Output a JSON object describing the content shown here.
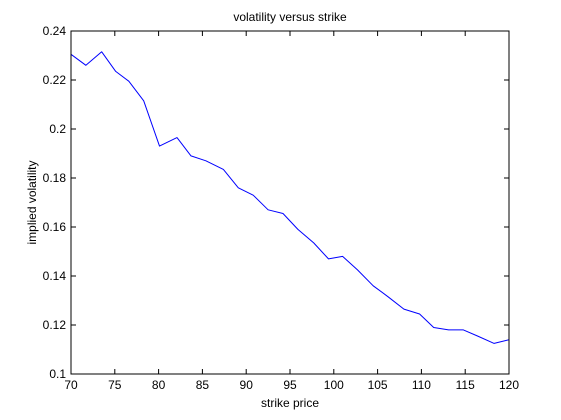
{
  "chart_data": {
    "type": "line",
    "title": "volatility versus strike",
    "xlabel": "strike price",
    "ylabel": "implied volatility",
    "xlim": [
      70,
      120
    ],
    "ylim": [
      0.1,
      0.24
    ],
    "xticks": [
      70,
      75,
      80,
      85,
      90,
      95,
      100,
      105,
      110,
      115,
      120
    ],
    "xtick_labels": [
      "70",
      "75",
      "80",
      "85",
      "90",
      "95",
      "100",
      "105",
      "110",
      "115",
      "120"
    ],
    "yticks": [
      0.1,
      0.12,
      0.14,
      0.16,
      0.18,
      0.2,
      0.22,
      0.24
    ],
    "ytick_labels": [
      "0.1",
      "0.12",
      "0.14",
      "0.16",
      "0.18",
      "0.2",
      "0.22",
      "0.24"
    ],
    "grid": false,
    "series": [
      {
        "color": "#0000ff",
        "x": [
          70.0,
          71.7,
          73.5,
          75.1,
          76.6,
          78.3,
          80.1,
          82.1,
          83.7,
          85.4,
          87.4,
          89.1,
          90.8,
          92.5,
          94.2,
          95.9,
          97.7,
          99.4,
          101.0,
          102.7,
          104.5,
          106.2,
          108.0,
          109.8,
          111.4,
          113.1,
          114.8,
          116.4,
          118.3,
          120.0
        ],
        "y": [
          0.2305,
          0.226,
          0.2315,
          0.2235,
          0.2195,
          0.2115,
          0.193,
          0.1965,
          0.189,
          0.187,
          0.1835,
          0.176,
          0.173,
          0.167,
          0.1655,
          0.159,
          0.1535,
          0.147,
          0.148,
          0.1425,
          0.136,
          0.1315,
          0.1265,
          0.1245,
          0.119,
          0.118,
          0.118,
          0.1155,
          0.1125,
          0.114
        ]
      }
    ]
  }
}
